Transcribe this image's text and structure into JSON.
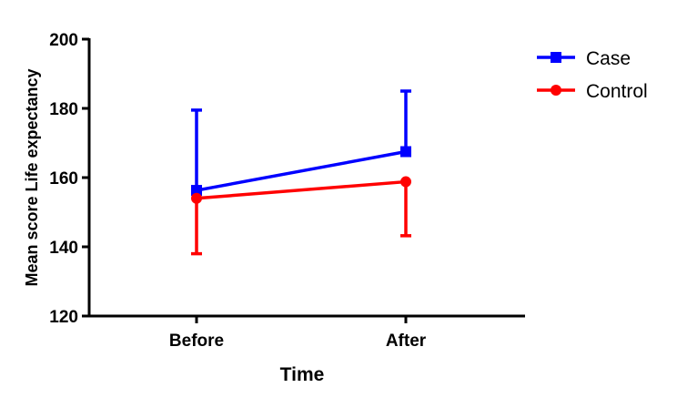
{
  "chart_data": {
    "type": "line",
    "title": "",
    "xlabel": "Time",
    "ylabel": "Mean score Life expectancy",
    "categories": [
      "Before",
      "After"
    ],
    "ylim": [
      120,
      200
    ],
    "yticks": [
      "120",
      "140",
      "160",
      "180",
      "200"
    ],
    "grid": false,
    "legend_position": "top-right",
    "error_bars": "one-sided (upper for Case, lower for Control)",
    "series": [
      {
        "name": "Case",
        "color": "#0000ff",
        "marker": "square",
        "values": [
          156.3,
          167.5
        ],
        "error_upper": [
          179.5,
          185.0
        ]
      },
      {
        "name": "Control",
        "color": "#ff0000",
        "marker": "circle",
        "values": [
          154.0,
          158.8
        ],
        "error_lower": [
          138.0,
          143.2
        ]
      }
    ]
  }
}
